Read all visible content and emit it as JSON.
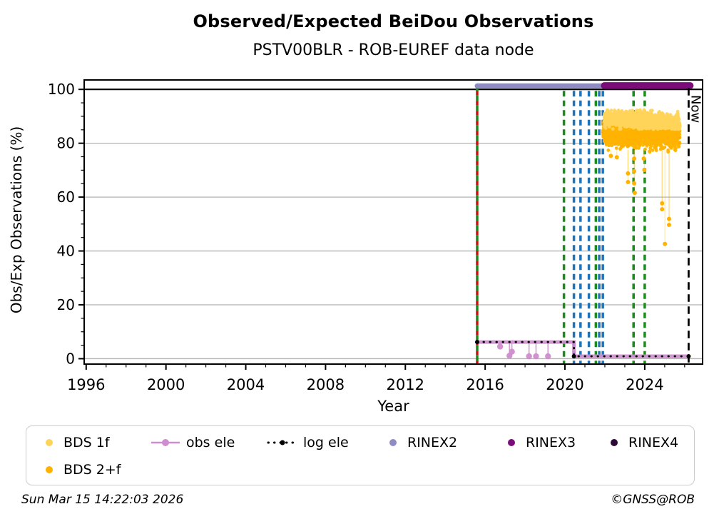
{
  "header": {
    "title": "Observed/Expected BeiDou Observations",
    "subtitle": "PSTV00BLR - ROB-EUREF data node"
  },
  "footer": {
    "timestamp": "Sun Mar 15 14:22:03 2026",
    "credit": "©GNSS@ROB"
  },
  "legend": {
    "items": [
      {
        "id": "bds1f",
        "label": "BDS 1f"
      },
      {
        "id": "obs_ele",
        "label": "obs ele"
      },
      {
        "id": "log_ele",
        "label": "log ele"
      },
      {
        "id": "rinex2",
        "label": "RINEX2"
      },
      {
        "id": "rinex3",
        "label": "RINEX3"
      },
      {
        "id": "rinex4",
        "label": "RINEX4"
      },
      {
        "id": "bds2f",
        "label": "BDS 2+f"
      }
    ]
  },
  "chart_data": {
    "type": "scatter",
    "title": "Observed/Expected BeiDou Observations",
    "subtitle": "PSTV00BLR - ROB-EUREF data node",
    "xlabel": "Year",
    "ylabel": "Obs/Exp Observations (%)",
    "xlim": [
      1995.9,
      2026.9
    ],
    "ylim": [
      -2,
      103.5
    ],
    "xticks": [
      1996,
      2000,
      2004,
      2008,
      2012,
      2016,
      2020,
      2024
    ],
    "xminor_step": 1,
    "yticks": [
      0,
      20,
      40,
      60,
      80,
      100
    ],
    "yminor_step": 5,
    "grid_y": [
      0,
      20,
      40,
      60,
      80
    ],
    "ref_line_y": 100,
    "grid_on": true,
    "legend_position": "bottom",
    "colors": {
      "bds1f": "#FFD45A",
      "bds2f": "#FFB300",
      "obs_ele": "#CD8DCE",
      "log_ele": "#000000",
      "rinex2": "#8E8CC3",
      "rinex3": "#7B0D7B",
      "rinex4": "#2D0936",
      "green": "#1C8A1C",
      "blue": "#2273B5",
      "red": "#CC1111",
      "now": "#000000",
      "grid": "#B3B3B3"
    },
    "now": {
      "x": 2026.2,
      "label": "Now"
    },
    "rinex_bars": [
      {
        "name": "RINEX2",
        "x0": 2015.6,
        "x1": 2021.97,
        "y": 101.3,
        "width": 7,
        "color_key": "rinex2"
      },
      {
        "name": "RINEX3",
        "x0": 2021.97,
        "x1": 2026.28,
        "y": 101.4,
        "width": 9.5,
        "color_key": "rinex3"
      }
    ],
    "event_lines": [
      {
        "x": 2015.6,
        "color_key": "duo"
      },
      {
        "x": 2019.95,
        "color_key": "green"
      },
      {
        "x": 2020.45,
        "color_key": "blue"
      },
      {
        "x": 2020.78,
        "color_key": "blue"
      },
      {
        "x": 2021.2,
        "color_key": "blue"
      },
      {
        "x": 2021.55,
        "color_key": "green"
      },
      {
        "x": 2021.72,
        "color_key": "blue"
      },
      {
        "x": 2021.9,
        "color_key": "blue"
      },
      {
        "x": 2023.44,
        "color_key": "green"
      },
      {
        "x": 2024.0,
        "color_key": "green"
      }
    ],
    "obs_ele": {
      "high": 6.2,
      "low": 0.9,
      "x0": 2015.6,
      "x_drop": 2020.45,
      "x1": 2026.2,
      "dips": [
        {
          "x": 2016.75,
          "y": 4.5,
          "stem": false
        },
        {
          "x": 2017.22,
          "y": 1.1,
          "stem": true
        },
        {
          "x": 2017.34,
          "y": 2.6,
          "stem": true
        },
        {
          "x": 2018.2,
          "y": 0.9,
          "stem": true
        },
        {
          "x": 2018.55,
          "y": 0.9,
          "stem": true
        },
        {
          "x": 2019.15,
          "y": 0.9,
          "stem": true
        }
      ]
    },
    "log_ele": {
      "high": 6.2,
      "low": 0.9,
      "x0": 2015.6,
      "x_drop": 2020.45,
      "x1": 2026.2
    },
    "series": [
      {
        "name": "BDS 2+f",
        "color_key": "bds2f",
        "band": {
          "x0": 2021.92,
          "x1": 2025.76,
          "n": 1300,
          "center0": 83.8,
          "slope": -0.3,
          "sigma": 2.2,
          "clip": [
            76.6,
            88.6
          ]
        },
        "outliers": [
          [
            2022.3,
            75.3
          ],
          [
            2022.6,
            74.8
          ],
          [
            2023.16,
            68.8
          ],
          [
            2023.16,
            65.6
          ],
          [
            2023.47,
            74.3
          ],
          [
            2023.47,
            69.6
          ],
          [
            2023.47,
            65.1
          ],
          [
            2023.5,
            61.6
          ],
          [
            2023.95,
            74.3
          ],
          [
            2023.98,
            70.1
          ],
          [
            2024.87,
            57.7
          ],
          [
            2024.87,
            55.5
          ],
          [
            2025.01,
            42.6
          ],
          [
            2025.22,
            51.9
          ],
          [
            2025.22,
            49.7
          ]
        ]
      },
      {
        "name": "BDS 1f",
        "color_key": "bds1f",
        "band": {
          "x0": 2021.97,
          "x1": 2025.76,
          "n": 1300,
          "center0": 89.4,
          "slope": -0.55,
          "sigma": 1.4,
          "clip": [
            85.2,
            92.4
          ]
        },
        "outliers": []
      }
    ],
    "seed": 20260315
  }
}
